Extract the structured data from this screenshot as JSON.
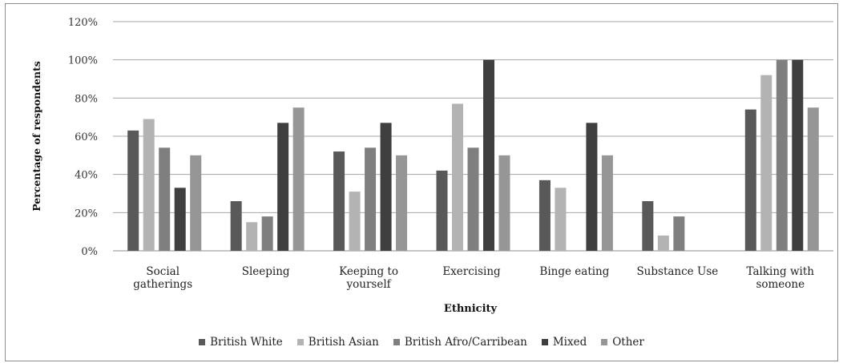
{
  "chart_data": {
    "type": "bar",
    "title": "",
    "xlabel": "Ethnicity",
    "ylabel": "Percentage of respondents",
    "ylim": [
      0,
      120
    ],
    "yticks": [
      "0%",
      "20%",
      "40%",
      "60%",
      "80%",
      "100%",
      "120%"
    ],
    "grid": true,
    "legend_position": "bottom",
    "categories": [
      [
        "Social",
        "gatherings"
      ],
      [
        "Sleeping"
      ],
      [
        "Keeping to",
        "yourself"
      ],
      [
        "Exercising"
      ],
      [
        "Binge eating"
      ],
      [
        "Substance Use"
      ],
      [
        "Talking with",
        "someone"
      ]
    ],
    "series": [
      {
        "name": "British White",
        "color": "#595959",
        "values": [
          63,
          26,
          52,
          42,
          37,
          26,
          74
        ]
      },
      {
        "name": "British Asian",
        "color": "#b3b3b3",
        "values": [
          69,
          15,
          31,
          77,
          33,
          8,
          92
        ]
      },
      {
        "name": "British Afro/Carribean",
        "color": "#7f7f7f",
        "values": [
          54,
          18,
          54,
          54,
          0,
          18,
          100
        ]
      },
      {
        "name": "Mixed",
        "color": "#3f3f3f",
        "values": [
          33,
          67,
          67,
          100,
          67,
          0,
          100
        ]
      },
      {
        "name": "Other",
        "color": "#969696",
        "values": [
          50,
          75,
          50,
          50,
          50,
          0,
          75
        ]
      }
    ]
  }
}
